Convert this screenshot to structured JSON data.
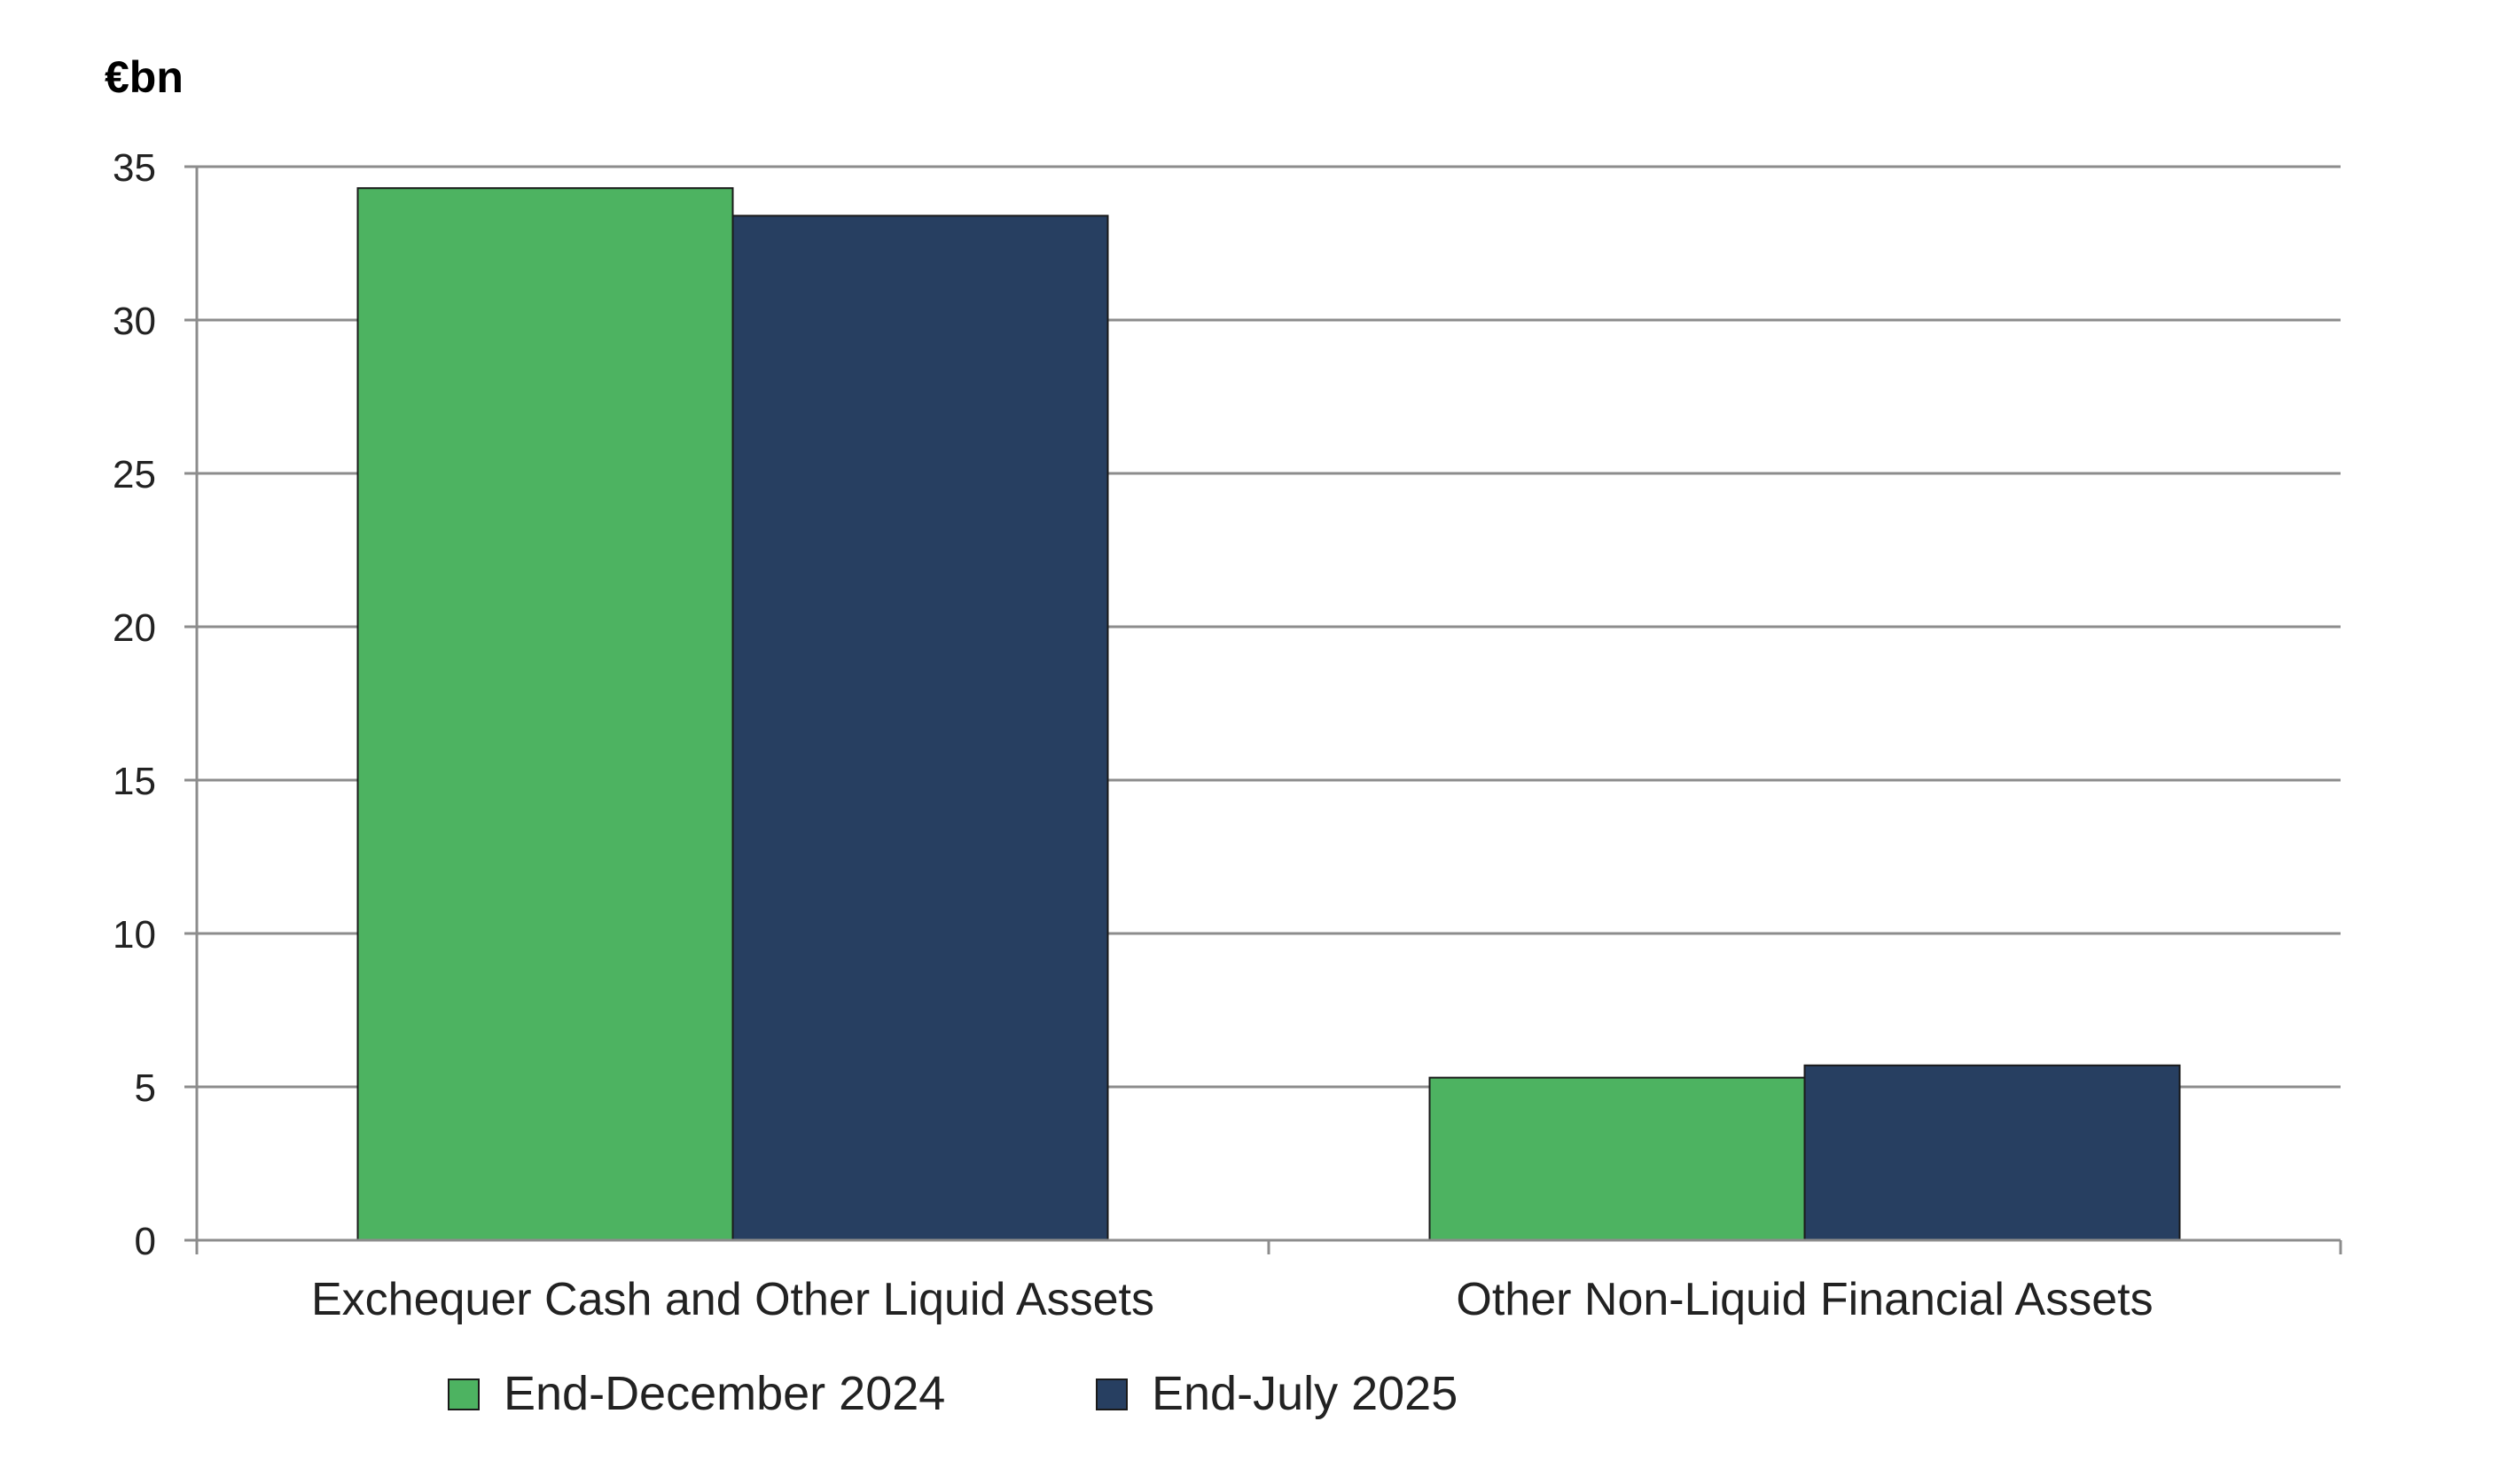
{
  "chart_data": {
    "type": "bar",
    "y_unit_label": "€bn",
    "categories": [
      "Exchequer Cash and Other Liquid Assets",
      "Other Non-Liquid Financial Assets"
    ],
    "series": [
      {
        "name": "End-December 2024",
        "values": [
          34.3,
          5.3
        ],
        "color": "#4db361"
      },
      {
        "name": "End-July 2025",
        "values": [
          33.4,
          5.7
        ],
        "color": "#273f61"
      }
    ],
    "ylim": [
      0,
      35
    ],
    "yticks": [
      0,
      5,
      10,
      15,
      20,
      25,
      30,
      35
    ],
    "grid": true,
    "legend_position": "bottom",
    "colors": {
      "gridline": "#8c8c8c",
      "axis": "#8c8c8c",
      "bar_outline": "#1a1a1a"
    }
  }
}
